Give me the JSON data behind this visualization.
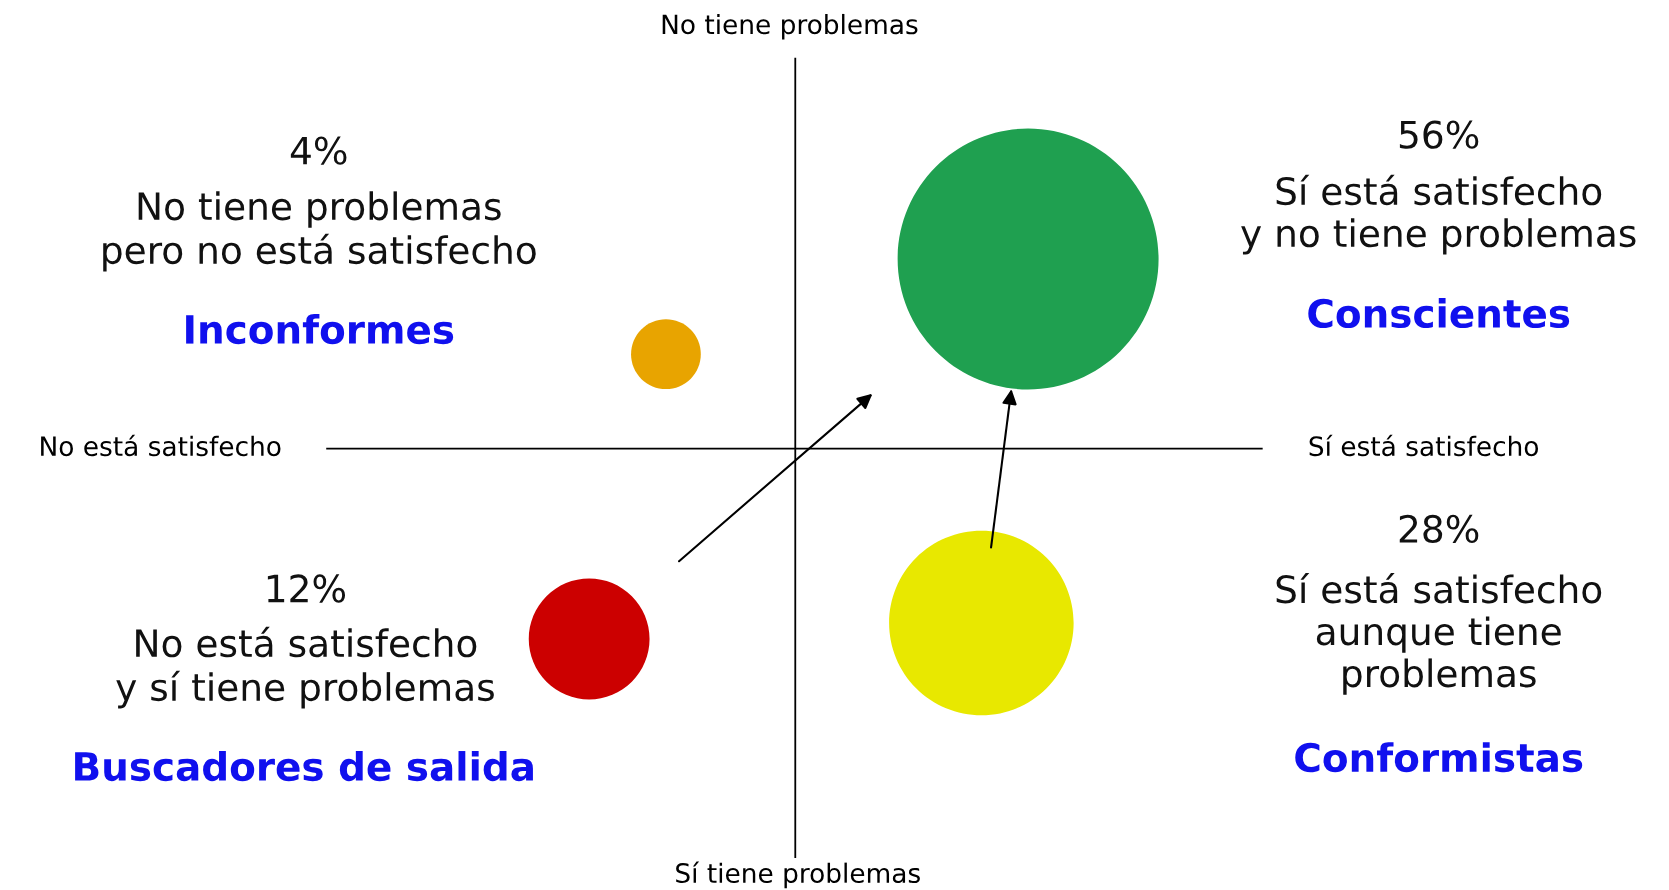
{
  "chart_data": {
    "type": "other",
    "categories": [
      "Inconformes",
      "Conscientes",
      "Buscadores de salida",
      "Conformistas"
    ],
    "values": [
      4,
      56,
      12,
      28
    ],
    "value_labels": [
      "4%",
      "56%",
      "12%",
      "28%"
    ],
    "colors": [
      "#e8a400",
      "#1fa050",
      "#cc0000",
      "#e8e800"
    ],
    "annotations": [
      "No tiene problemas",
      "Sí tiene problemas",
      "No está satisfecho",
      "Sí está satisfecho",
      "No tiene problemas\npero no está satisfecho",
      "Sí está satisfecho\ny no tiene problemas",
      "No está satisfecho\ny sí tiene problemas",
      "Sí está satisfecho\naunque tiene\nproblemas"
    ]
  }
}
